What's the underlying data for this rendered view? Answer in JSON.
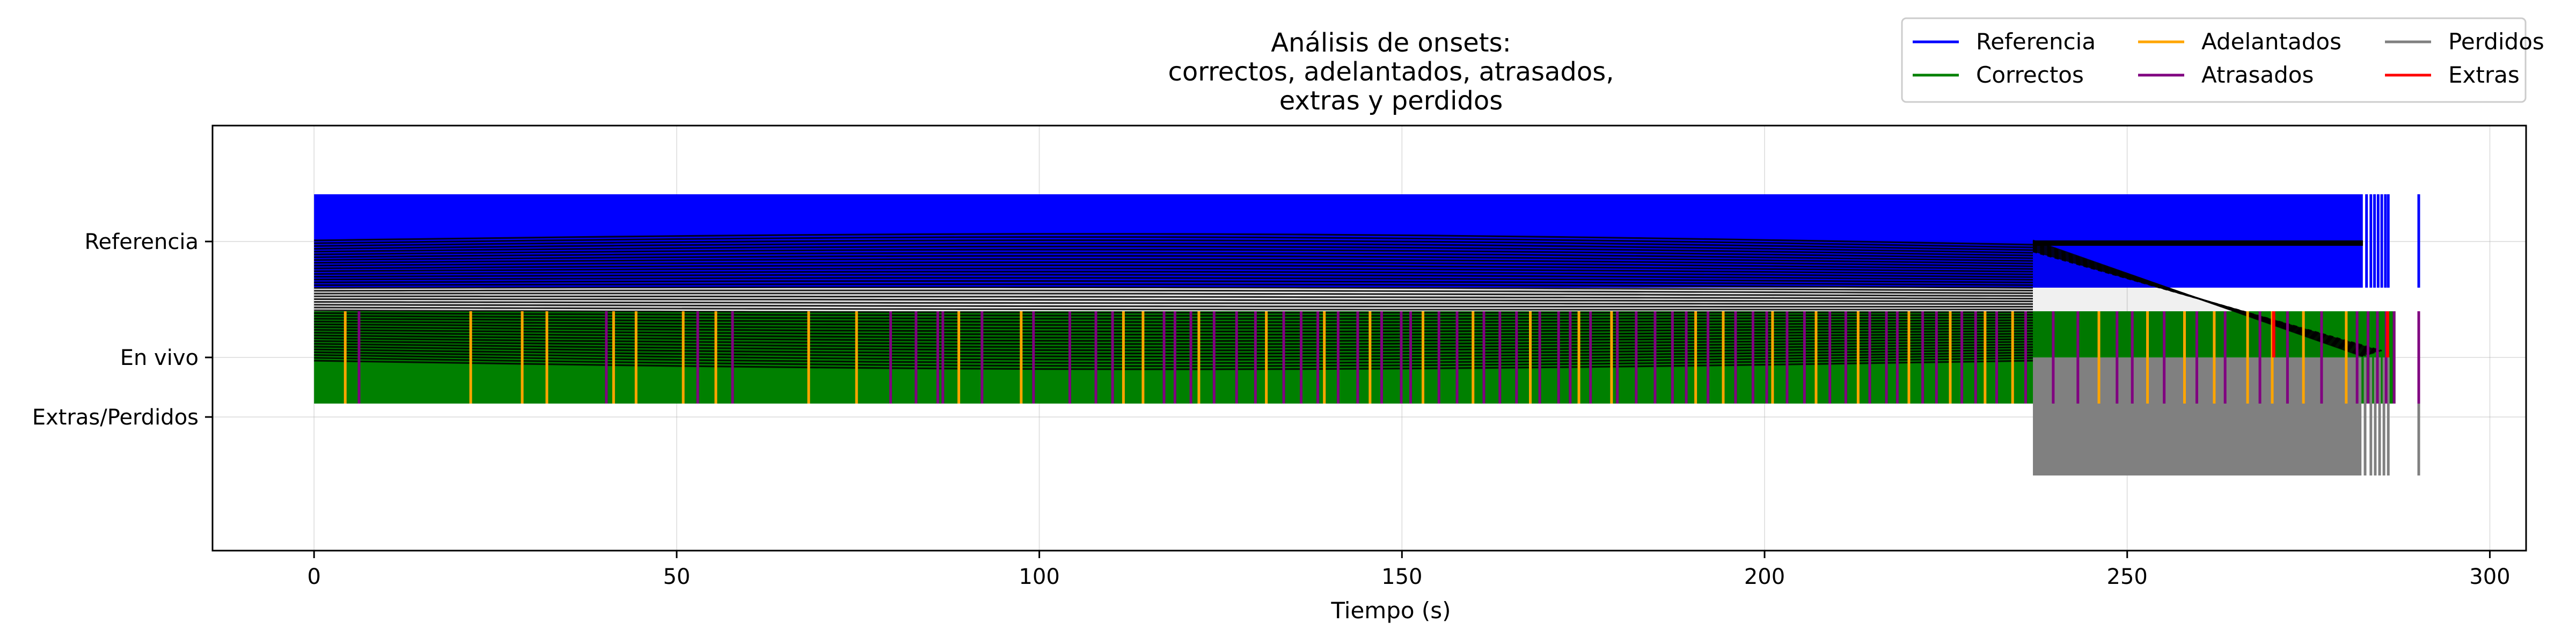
{
  "chart_data": {
    "type": "scatter",
    "title_lines": [
      "Análisis de onsets:",
      "correctos, adelantados, atrasados,",
      "extras y perdidos"
    ],
    "xlabel": "Tiempo (s)",
    "ylabel": "",
    "xlim": [
      -14,
      305
    ],
    "x_ticks": [
      0,
      50,
      100,
      150,
      200,
      250,
      300
    ],
    "rows": [
      "Referencia",
      "En vivo",
      "Extras/Perdidos"
    ],
    "grid": true,
    "legend": {
      "placement": "top-right",
      "entries": [
        {
          "label": "Referencia",
          "color": "#0000ff"
        },
        {
          "label": "Correctos",
          "color": "#008000"
        },
        {
          "label": "Adelantados",
          "color": "#ffa500"
        },
        {
          "label": "Atrasados",
          "color": "#800080"
        },
        {
          "label": "Perdidos",
          "color": "#808080"
        },
        {
          "label": "Extras",
          "color": "#ff0000"
        }
      ]
    },
    "series": [
      {
        "name": "Referencia",
        "row": "Referencia",
        "range": [
          0,
          290.2
        ],
        "sparse_onsets": [
          282.3,
          283.0,
          283.6,
          284.1,
          284.6,
          285.1,
          285.6,
          286.0,
          290.2
        ]
      },
      {
        "name": "Correctos",
        "row": "En vivo",
        "range": [
          0,
          287.0
        ]
      },
      {
        "name": "Adelantados",
        "row": "En vivo",
        "onsets": [
          4.3,
          21.6,
          28.7,
          32.1,
          41.3,
          44.4,
          50.9,
          55.4,
          68.2,
          74.8,
          88.9,
          97.5,
          111.6,
          114.3,
          122.0,
          131.3,
          139.3,
          145.6,
          152.9,
          159.8,
          167.7,
          174.4,
          178.9,
          190.5,
          194.3,
          201.1,
          207.1,
          212.9,
          219.9,
          225.6,
          230.4,
          234.2,
          246.1,
          252.8,
          257.9,
          262.0,
          266.6,
          270.0,
          274.3,
          280.2
        ]
      },
      {
        "name": "Atrasados",
        "row": "En vivo",
        "onsets": [
          6.2,
          40.3,
          52.9,
          57.7,
          79.5,
          83.0,
          86.0,
          86.7,
          92.1,
          99.2,
          104.2,
          107.8,
          110.1,
          117.2,
          118.7,
          120.9,
          124.1,
          127.2,
          129.8,
          133.7,
          136.1,
          138.4,
          141.2,
          143.9,
          147.2,
          149.9,
          151.2,
          155.1,
          157.6,
          161.3,
          163.5,
          165.8,
          169.0,
          171.6,
          173.2,
          176.0,
          179.7,
          182.3,
          184.9,
          187.3,
          189.2,
          192.2,
          196.0,
          198.4,
          200.3,
          203.1,
          205.5,
          209.0,
          211.2,
          214.5,
          216.8,
          218.3,
          221.8,
          223.7,
          227.2,
          229.1,
          232.0,
          236.0,
          239.8,
          243.2,
          248.6,
          250.7,
          255.1,
          259.6,
          263.5,
          268.3,
          272.1,
          276.8,
          281.7,
          283.2,
          284.5,
          285.7,
          286.8,
          290.2
        ]
      },
      {
        "name": "Extras",
        "row": "En vivo",
        "onsets": [
          270.2,
          285.9
        ]
      },
      {
        "name": "Perdidos",
        "row": "Extras/Perdidos",
        "range": [
          237.0,
          282.3
        ],
        "sparse_onsets": [
          282.8,
          283.6,
          284.2,
          284.8,
          285.4,
          286.0,
          290.2
        ]
      }
    ],
    "notes_band": "Líneas negras de asociación entre onsets de referencia y en vivo (no etiquetadas)"
  }
}
